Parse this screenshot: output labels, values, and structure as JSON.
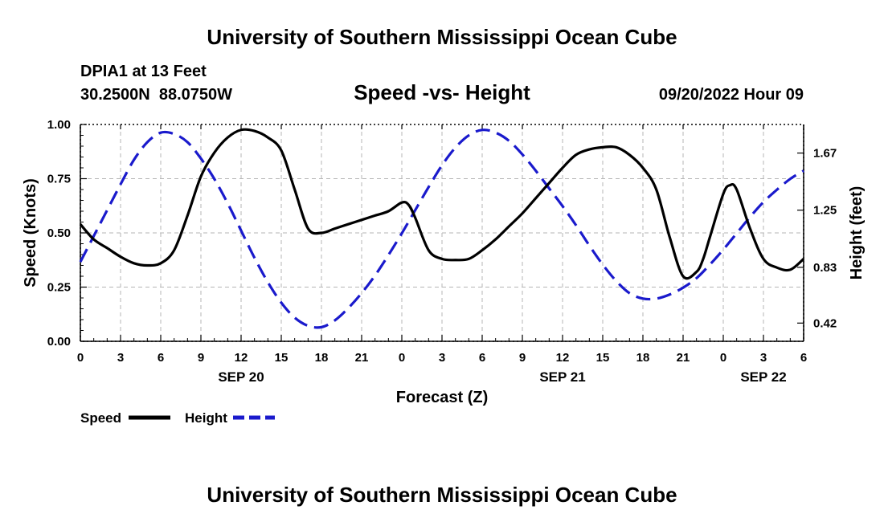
{
  "chart_data": {
    "type": "line",
    "title": "University of Southern Mississippi Ocean Cube",
    "footer_title": "University of Southern Mississippi Ocean Cube",
    "subtitle": "Speed -vs- Height",
    "station": "DPIA1 at 13 Feet",
    "coords": "30.2500N  88.0750W",
    "timestamp": "09/20/2022 Hour 09",
    "xlabel": "Forecast (Z)",
    "ylabel_left": "Speed (Knots)",
    "ylabel_right": "Height (feet)",
    "x_unit": "hours since 2022-09-20 00Z",
    "xlim": [
      0,
      54
    ],
    "ylim_left": [
      0,
      1
    ],
    "ylim_right": [
      0.286,
      1.88
    ],
    "x_ticks": [
      0,
      3,
      6,
      9,
      12,
      15,
      18,
      21,
      24,
      27,
      30,
      33,
      36,
      39,
      42,
      45,
      48,
      51,
      54
    ],
    "x_tick_labels": [
      "0",
      "3",
      "6",
      "9",
      "12",
      "15",
      "18",
      "21",
      "0",
      "3",
      "6",
      "9",
      "12",
      "15",
      "18",
      "21",
      "0",
      "3",
      "6"
    ],
    "date_labels": [
      {
        "x": 12,
        "label": "SEP 20"
      },
      {
        "x": 36,
        "label": "SEP 21"
      },
      {
        "x": 51,
        "label": "SEP 22"
      }
    ],
    "y_ticks_left": [
      0,
      0.25,
      0.5,
      0.75,
      1.0
    ],
    "y_tick_labels_left": [
      "0.00",
      "0.25",
      "0.50",
      "0.75",
      "1.00"
    ],
    "y_ticks_right": [
      0.42,
      0.83,
      1.25,
      1.67
    ],
    "y_tick_labels_right": [
      "0.42",
      "0.83",
      "1.25",
      "1.67"
    ],
    "grid": true,
    "legend_position": "bottom-left",
    "series": [
      {
        "name": "Speed",
        "axis": "left",
        "color": "#000000",
        "style": "solid",
        "x": [
          0,
          1,
          2,
          3,
          4,
          5,
          6,
          7,
          8,
          9,
          10,
          11,
          12,
          13,
          14,
          15,
          16,
          17,
          18,
          19,
          20,
          21,
          22,
          23,
          24,
          24.5,
          25,
          26,
          27,
          28,
          29,
          30,
          31,
          32,
          33,
          34,
          35,
          36,
          37,
          38,
          39,
          40,
          41,
          42,
          43,
          44,
          45,
          46,
          46.5,
          47,
          48,
          48.5,
          49,
          50,
          51,
          52,
          53,
          54
        ],
        "values": [
          0.54,
          0.47,
          0.43,
          0.39,
          0.36,
          0.35,
          0.36,
          0.42,
          0.58,
          0.76,
          0.87,
          0.94,
          0.975,
          0.97,
          0.94,
          0.88,
          0.7,
          0.52,
          0.5,
          0.52,
          0.54,
          0.56,
          0.58,
          0.6,
          0.64,
          0.63,
          0.57,
          0.42,
          0.38,
          0.375,
          0.38,
          0.42,
          0.47,
          0.53,
          0.59,
          0.66,
          0.73,
          0.8,
          0.86,
          0.885,
          0.895,
          0.895,
          0.86,
          0.8,
          0.7,
          0.48,
          0.3,
          0.32,
          0.38,
          0.48,
          0.68,
          0.72,
          0.7,
          0.52,
          0.38,
          0.34,
          0.33,
          0.38
        ]
      },
      {
        "name": "Height",
        "axis": "right",
        "color": "#1a1acc",
        "style": "dashed",
        "x": [
          0,
          1,
          2,
          3,
          4,
          5,
          6,
          7,
          8,
          9,
          10,
          11,
          12,
          13,
          14,
          15,
          16,
          17,
          18,
          19,
          20,
          21,
          22,
          23,
          24,
          25,
          26,
          27,
          28,
          29,
          30,
          31,
          32,
          33,
          34,
          35,
          36,
          37,
          38,
          39,
          40,
          41,
          42,
          43,
          44,
          45,
          46,
          47,
          48,
          49,
          50,
          51,
          52,
          53,
          54
        ],
        "values": [
          0.87,
          1.06,
          1.25,
          1.44,
          1.62,
          1.75,
          1.82,
          1.81,
          1.75,
          1.63,
          1.48,
          1.3,
          1.1,
          0.9,
          0.72,
          0.57,
          0.46,
          0.4,
          0.39,
          0.44,
          0.53,
          0.64,
          0.77,
          0.92,
          1.08,
          1.25,
          1.42,
          1.58,
          1.71,
          1.8,
          1.84,
          1.82,
          1.76,
          1.66,
          1.54,
          1.41,
          1.28,
          1.14,
          0.99,
          0.85,
          0.73,
          0.64,
          0.6,
          0.6,
          0.63,
          0.68,
          0.75,
          0.85,
          0.96,
          1.08,
          1.2,
          1.31,
          1.4,
          1.48,
          1.54
        ]
      }
    ]
  }
}
